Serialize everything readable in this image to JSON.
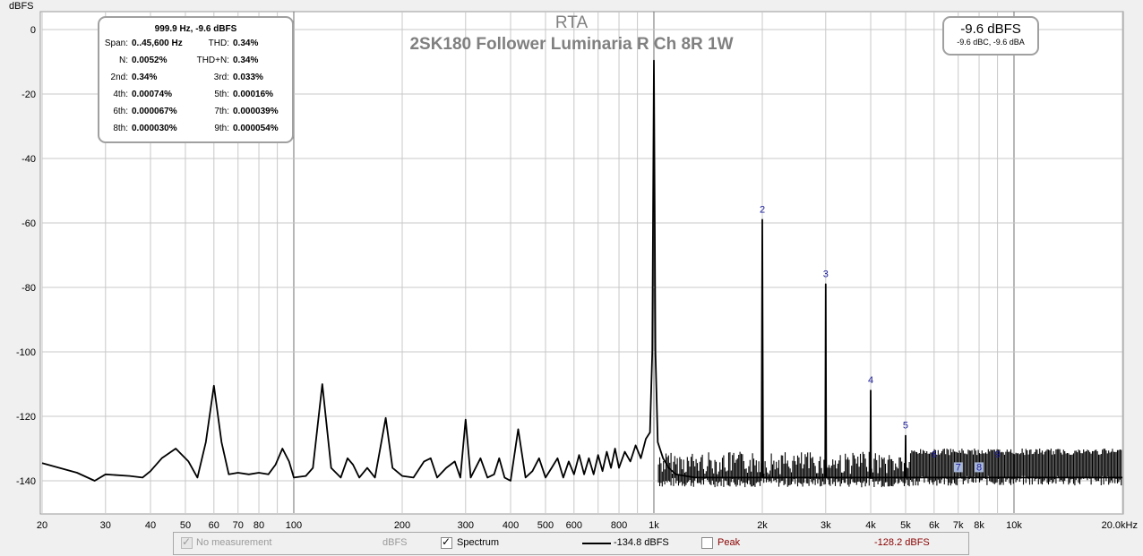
{
  "chart_data": {
    "type": "line",
    "title": "RTA",
    "subtitle": "2SK180 Follower Luminaria R Ch 8R 1W",
    "xlabel": "",
    "ylabel": "dBFS",
    "xscale": "log",
    "xlim": [
      20,
      20000
    ],
    "ylim": [
      -150,
      5
    ],
    "x_ticks": [
      {
        "v": 20,
        "t": "20"
      },
      {
        "v": 30,
        "t": "30"
      },
      {
        "v": 40,
        "t": "40"
      },
      {
        "v": 50,
        "t": "50"
      },
      {
        "v": 60,
        "t": "60"
      },
      {
        "v": 70,
        "t": "70"
      },
      {
        "v": 80,
        "t": "80"
      },
      {
        "v": 100,
        "t": "100"
      },
      {
        "v": 200,
        "t": "200"
      },
      {
        "v": 300,
        "t": "300"
      },
      {
        "v": 400,
        "t": "400"
      },
      {
        "v": 500,
        "t": "500"
      },
      {
        "v": 600,
        "t": "600"
      },
      {
        "v": 800,
        "t": "800"
      },
      {
        "v": 1000,
        "t": "1k"
      },
      {
        "v": 2000,
        "t": "2k"
      },
      {
        "v": 3000,
        "t": "3k"
      },
      {
        "v": 4000,
        "t": "4k"
      },
      {
        "v": 5000,
        "t": "5k"
      },
      {
        "v": 6000,
        "t": "6k"
      },
      {
        "v": 7000,
        "t": "7k"
      },
      {
        "v": 8000,
        "t": "8k"
      },
      {
        "v": 10000,
        "t": "10k"
      },
      {
        "v": 20000,
        "t": "20.0kHz"
      }
    ],
    "y_ticks": [
      {
        "v": 0,
        "t": "0"
      },
      {
        "v": -20,
        "t": "-20"
      },
      {
        "v": -40,
        "t": "-40"
      },
      {
        "v": -60,
        "t": "-60"
      },
      {
        "v": -80,
        "t": "-80"
      },
      {
        "v": -100,
        "t": "-100"
      },
      {
        "v": -120,
        "t": "-120"
      },
      {
        "v": -140,
        "t": "-140"
      }
    ],
    "fundamental": {
      "freq": 1000,
      "level": -9.6
    },
    "harmonic_markers": [
      {
        "n": "2",
        "freq": 2000,
        "level": -59
      },
      {
        "n": "3",
        "freq": 3000,
        "level": -79
      },
      {
        "n": "4",
        "freq": 4000,
        "level": -112
      },
      {
        "n": "5",
        "freq": 5000,
        "level": -126
      },
      {
        "n": "6",
        "freq": 6000,
        "level": -135
      },
      {
        "n": "7",
        "freq": 7000,
        "level": -139
      },
      {
        "n": "8",
        "freq": 8000,
        "level": -139
      },
      {
        "n": "9",
        "freq": 9000,
        "level": -135
      }
    ],
    "series": [
      {
        "name": "Spectrum",
        "color": "#000000",
        "points": [
          [
            20,
            -134.5
          ],
          [
            25,
            -137.5
          ],
          [
            28,
            -140
          ],
          [
            30,
            -138
          ],
          [
            35,
            -138.5
          ],
          [
            38,
            -139
          ],
          [
            40,
            -137
          ],
          [
            43,
            -133
          ],
          [
            47,
            -130
          ],
          [
            51,
            -134
          ],
          [
            54,
            -139
          ],
          [
            57,
            -128
          ],
          [
            60,
            -110.5
          ],
          [
            63,
            -128
          ],
          [
            66,
            -138
          ],
          [
            70,
            -137.5
          ],
          [
            75,
            -138
          ],
          [
            80,
            -137.5
          ],
          [
            85,
            -138
          ],
          [
            89,
            -135
          ],
          [
            93,
            -130
          ],
          [
            97,
            -134
          ],
          [
            100,
            -139
          ],
          [
            108,
            -138.5
          ],
          [
            113,
            -136
          ],
          [
            120,
            -110
          ],
          [
            127,
            -136
          ],
          [
            135,
            -139
          ],
          [
            141,
            -133
          ],
          [
            146,
            -135
          ],
          [
            152,
            -139
          ],
          [
            160,
            -136
          ],
          [
            168,
            -139
          ],
          [
            180,
            -120.5
          ],
          [
            188,
            -136
          ],
          [
            200,
            -138.5
          ],
          [
            215,
            -139
          ],
          [
            230,
            -134
          ],
          [
            240,
            -133
          ],
          [
            250,
            -139
          ],
          [
            265,
            -136
          ],
          [
            280,
            -134
          ],
          [
            290,
            -139
          ],
          [
            300,
            -121
          ],
          [
            310,
            -139
          ],
          [
            330,
            -133
          ],
          [
            345,
            -139
          ],
          [
            360,
            -138
          ],
          [
            372,
            -133
          ],
          [
            385,
            -139
          ],
          [
            400,
            -140
          ],
          [
            420,
            -124
          ],
          [
            440,
            -139
          ],
          [
            460,
            -137
          ],
          [
            480,
            -133
          ],
          [
            500,
            -139
          ],
          [
            520,
            -136
          ],
          [
            540,
            -133
          ],
          [
            560,
            -139
          ],
          [
            580,
            -134
          ],
          [
            600,
            -138
          ],
          [
            620,
            -132
          ],
          [
            640,
            -138
          ],
          [
            660,
            -133
          ],
          [
            680,
            -138
          ],
          [
            700,
            -132
          ],
          [
            720,
            -137
          ],
          [
            740,
            -131
          ],
          [
            760,
            -136
          ],
          [
            780,
            -130
          ],
          [
            800,
            -136
          ],
          [
            830,
            -131
          ],
          [
            860,
            -134
          ],
          [
            890,
            -129
          ],
          [
            920,
            -133
          ],
          [
            950,
            -127
          ],
          [
            975,
            -125
          ],
          [
            990,
            -100
          ],
          [
            1000,
            -9.6
          ],
          [
            1010,
            -100
          ],
          [
            1025,
            -128
          ],
          [
            1060,
            -133
          ],
          [
            1100,
            -136
          ],
          [
            1150,
            -138
          ],
          [
            1300,
            -139
          ],
          [
            1500,
            -139
          ],
          [
            1800,
            -139
          ],
          [
            1990,
            -139
          ],
          [
            2000,
            -59
          ],
          [
            2010,
            -139
          ],
          [
            2500,
            -139
          ],
          [
            2990,
            -139
          ],
          [
            3000,
            -79
          ],
          [
            3010,
            -139
          ],
          [
            3500,
            -139
          ],
          [
            3990,
            -139
          ],
          [
            4000,
            -112
          ],
          [
            4010,
            -139
          ],
          [
            4990,
            -139
          ],
          [
            5000,
            -126
          ],
          [
            5010,
            -139
          ],
          [
            6000,
            -139
          ],
          [
            8000,
            -139
          ],
          [
            12000,
            -139
          ],
          [
            20000,
            -139
          ]
        ]
      }
    ],
    "noise_floor_band": {
      "from": 1000,
      "to": 20000,
      "low": -142,
      "high": -131,
      "dense_low": -141.5,
      "dense_high": -130
    }
  },
  "info": {
    "header": "999.9 Hz, -9.6 dBFS",
    "rows": [
      [
        {
          "label": "Span:",
          "value": "0..45,600 Hz"
        },
        {
          "label": "THD:",
          "value": "0.34%"
        }
      ],
      [
        {
          "label": "N:",
          "value": "0.0052%"
        },
        {
          "label": "THD+N:",
          "value": "0.34%"
        }
      ],
      [
        {
          "label": "2nd:",
          "value": "0.34%"
        },
        {
          "label": "3rd:",
          "value": "0.033%"
        }
      ],
      [
        {
          "label": "4th:",
          "value": "0.00074%"
        },
        {
          "label": "5th:",
          "value": "0.00016%"
        }
      ],
      [
        {
          "label": "6th:",
          "value": "0.000067%"
        },
        {
          "label": "7th:",
          "value": "0.000039%"
        }
      ],
      [
        {
          "label": "8th:",
          "value": "0.000030%"
        },
        {
          "label": "9th:",
          "value": "0.000054%"
        }
      ]
    ]
  },
  "level": {
    "main": "-9.6 dBFS",
    "sub": "-9.6 dBC, -9.6 dBA"
  },
  "legend": {
    "no_measurement": {
      "label": "No measurement",
      "unit": "dBFS",
      "checked": true,
      "enabled": false
    },
    "spectrum": {
      "label": "Spectrum",
      "value": "-134.8 dBFS",
      "checked": true,
      "color": "#000000"
    },
    "peak": {
      "label": "Peak",
      "value": "-128.2 dBFS",
      "checked": false,
      "color": "#8b0000"
    }
  },
  "colors": {
    "grid": "#c8c8c8",
    "grid_decade": "#707070",
    "marker_text": "#1c1c9c",
    "plot_bg": "#ffffff",
    "title": "#808080"
  }
}
